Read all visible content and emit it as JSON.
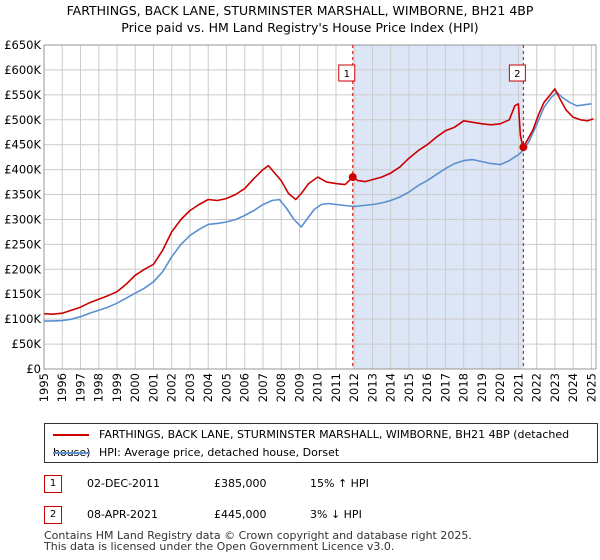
{
  "chart_data": {
    "type": "line",
    "title": "FARTHINGS, BACK LANE, STURMINSTER MARSHALL, WIMBORNE, BH21 4BP",
    "subtitle": "Price paid vs. HM Land Registry's House Price Index (HPI)",
    "xlim": [
      1995,
      2025.25
    ],
    "ylim": [
      0,
      650000
    ],
    "x_ticks": [
      "1995",
      "1996",
      "1997",
      "1998",
      "1999",
      "2000",
      "2001",
      "2002",
      "2003",
      "2004",
      "2005",
      "2006",
      "2007",
      "2008",
      "2009",
      "2010",
      "2011",
      "2012",
      "2013",
      "2014",
      "2015",
      "2016",
      "2017",
      "2018",
      "2019",
      "2020",
      "2021",
      "2022",
      "2023",
      "2024",
      "2025"
    ],
    "y_ticks": [
      "£0",
      "£50K",
      "£100K",
      "£150K",
      "£200K",
      "£250K",
      "£300K",
      "£350K",
      "£400K",
      "£450K",
      "£500K",
      "£550K",
      "£600K",
      "£650K"
    ],
    "grid": true,
    "shade_region": [
      2011.92,
      2021.27
    ],
    "series": [
      {
        "name": "FARTHINGS, BACK LANE, STURMINSTER MARSHALL, WIMBORNE, BH21 4BP (detached house)",
        "color": "#cc0000",
        "x": [
          1995,
          1995.5,
          1996,
          1996.5,
          1997,
          1997.5,
          1998,
          1998.5,
          1999,
          1999.5,
          2000,
          2000.5,
          2001,
          2001.5,
          2002,
          2002.5,
          2003,
          2003.5,
          2004,
          2004.5,
          2005,
          2005.5,
          2006,
          2006.5,
          2007,
          2007.3,
          2007.6,
          2008,
          2008.4,
          2008.8,
          2009.1,
          2009.5,
          2010,
          2010.5,
          2011,
          2011.5,
          2011.92,
          2012.2,
          2012.6,
          2013,
          2013.5,
          2014,
          2014.5,
          2015,
          2015.5,
          2016,
          2016.5,
          2017,
          2017.5,
          2018,
          2018.5,
          2019,
          2019.5,
          2020,
          2020.5,
          2020.8,
          2021.0,
          2021.1,
          2021.2,
          2021.27,
          2021.5,
          2021.8,
          2022.1,
          2022.4,
          2022.7,
          2023.0,
          2023.3,
          2023.6,
          2024.0,
          2024.4,
          2024.8,
          2025.1
        ],
        "y": [
          111000,
          110000,
          112000,
          118000,
          124000,
          133000,
          140000,
          147000,
          155000,
          170000,
          188000,
          200000,
          210000,
          238000,
          275000,
          300000,
          318000,
          330000,
          340000,
          338000,
          342000,
          350000,
          362000,
          382000,
          400000,
          408000,
          395000,
          378000,
          352000,
          340000,
          352000,
          372000,
          385000,
          375000,
          372000,
          370000,
          385000,
          378000,
          376000,
          380000,
          385000,
          393000,
          405000,
          423000,
          438000,
          450000,
          465000,
          478000,
          485000,
          498000,
          495000,
          492000,
          490000,
          492000,
          500000,
          528000,
          532000,
          470000,
          452000,
          445000,
          460000,
          480000,
          510000,
          535000,
          548000,
          562000,
          540000,
          520000,
          505000,
          500000,
          498000,
          502000
        ]
      },
      {
        "name": "HPI: Average price, detached house, Dorset",
        "color": "#5b8fd0",
        "x": [
          1995,
          1995.5,
          1996,
          1996.5,
          1997,
          1997.5,
          1998,
          1998.5,
          1999,
          1999.5,
          2000,
          2000.5,
          2001,
          2001.5,
          2002,
          2002.5,
          2003,
          2003.5,
          2004,
          2004.5,
          2005,
          2005.5,
          2006,
          2006.5,
          2007,
          2007.5,
          2007.9,
          2008.3,
          2008.7,
          2009.1,
          2009.4,
          2009.8,
          2010.2,
          2010.6,
          2011,
          2011.5,
          2012,
          2012.5,
          2013,
          2013.5,
          2014,
          2014.5,
          2015,
          2015.5,
          2016,
          2016.5,
          2017,
          2017.5,
          2018,
          2018.5,
          2019,
          2019.5,
          2020,
          2020.5,
          2021,
          2021.3,
          2021.6,
          2022,
          2022.4,
          2022.8,
          2023.1,
          2023.4,
          2023.8,
          2024.2,
          2024.6,
          2025.0
        ],
        "y": [
          96000,
          96500,
          97000,
          100000,
          105000,
          112000,
          118000,
          124000,
          132000,
          142000,
          152000,
          162000,
          175000,
          195000,
          225000,
          250000,
          268000,
          280000,
          290000,
          292000,
          295000,
          300000,
          308000,
          318000,
          330000,
          338000,
          340000,
          322000,
          300000,
          285000,
          300000,
          320000,
          330000,
          332000,
          330000,
          328000,
          326000,
          328000,
          330000,
          333000,
          338000,
          345000,
          355000,
          368000,
          378000,
          390000,
          402000,
          412000,
          418000,
          420000,
          416000,
          412000,
          410000,
          418000,
          430000,
          440000,
          458000,
          490000,
          525000,
          545000,
          555000,
          545000,
          535000,
          528000,
          530000,
          532000
        ]
      }
    ],
    "sales": [
      {
        "label": "1",
        "x": 2011.92,
        "y": 385000
      },
      {
        "label": "2",
        "x": 2021.27,
        "y": 445000
      }
    ]
  },
  "legend": {
    "property_line": "FARTHINGS, BACK LANE, STURMINSTER MARSHALL, WIMBORNE, BH21 4BP (detached house)",
    "hpi_line": "HPI: Average price, detached house, Dorset"
  },
  "annotations": [
    {
      "num": "1",
      "date": "02-DEC-2011",
      "price": "£385,000",
      "hpi": "15% ↑ HPI"
    },
    {
      "num": "2",
      "date": "08-APR-2021",
      "price": "£445,000",
      "hpi": "3% ↓ HPI"
    }
  ],
  "footer": {
    "line1": "Contains HM Land Registry data © Crown copyright and database right 2025.",
    "line2": "This data is licensed under the Open Government Licence v3.0."
  },
  "colors": {
    "property": "#cc0000",
    "hpi": "#5b8fd0",
    "shade": "#dde6f6",
    "grid": "#cccccc"
  }
}
